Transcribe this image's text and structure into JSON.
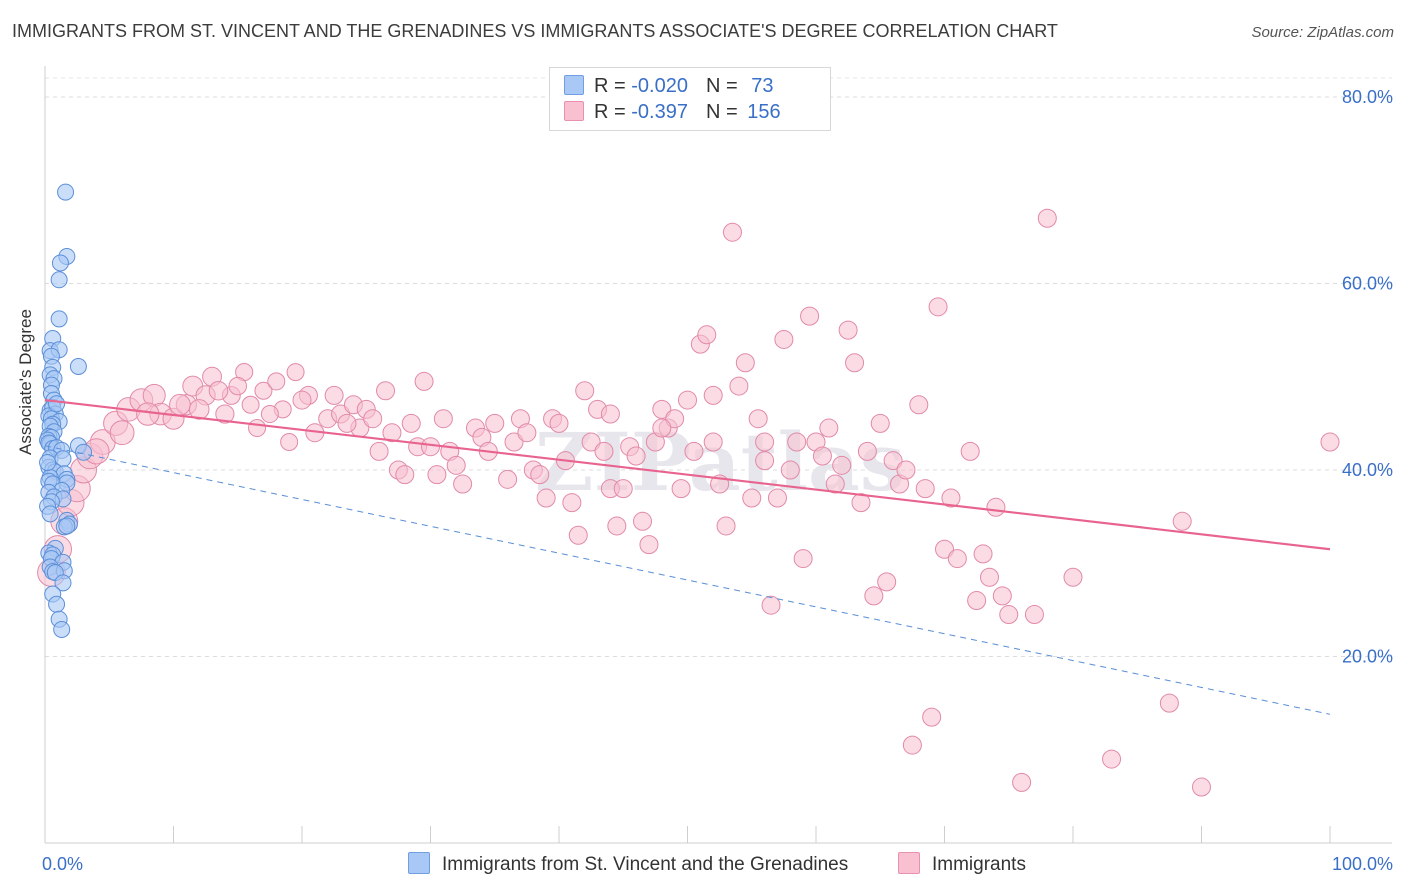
{
  "header": {
    "title": "IMMIGRANTS FROM ST. VINCENT AND THE GRENADINES VS IMMIGRANTS ASSOCIATE'S DEGREE CORRELATION CHART",
    "source": "Source: ZipAtlas.com"
  },
  "watermark": "ZIPatlas",
  "legend": {
    "rows": [
      {
        "r_label": "R = ",
        "r_value": "-0.020",
        "n_label": "N = ",
        "n_value": " 73",
        "color": "#a9c8f5",
        "border": "#6f9fe0"
      },
      {
        "r_label": "R = ",
        "r_value": " -0.397",
        "n_label": "N = ",
        "n_value": "156",
        "color": "#f8c0d0",
        "border": "#e890ad"
      }
    ]
  },
  "bottom_legend": [
    {
      "label": "Immigrants from St. Vincent and the Grenadines",
      "color": "#a9c8f5",
      "border": "#6f9fe0"
    },
    {
      "label": "Immigrants",
      "color": "#f8c0d0",
      "border": "#e890ad"
    }
  ],
  "chart_data": {
    "type": "scatter",
    "title": "IMMIGRANTS FROM ST. VINCENT AND THE GRENADINES VS IMMIGRANTS ASSOCIATE'S DEGREE CORRELATION CHART",
    "xlabel": "",
    "ylabel": "Associate's Degree",
    "xlim": [
      0,
      100
    ],
    "ylim": [
      0,
      80
    ],
    "x_tick_labels": [
      {
        "value": 0,
        "label": "0.0%"
      },
      {
        "value": 100,
        "label": "100.0%"
      }
    ],
    "y_tick_labels": [
      {
        "value": 20,
        "label": "20.0%"
      },
      {
        "value": 40,
        "label": "40.0%"
      },
      {
        "value": 60,
        "label": "60.0%"
      },
      {
        "value": 80,
        "label": "80.0%"
      }
    ],
    "grid": true,
    "legend_position": "top-center",
    "colors": {
      "blue_fill": "#a9c8f5",
      "blue_edge": "#5b8fd8",
      "pink_fill": "#f8c0d0",
      "pink_edge": "#e28aa8",
      "blue_trend": "#5b8fd8",
      "pink_trend": "#e8648f",
      "tick_label": "#3a6fc8"
    },
    "series": [
      {
        "name": "Immigrants from St. Vincent and the Grenadines",
        "R": -0.02,
        "N": 73,
        "trend": {
          "x": [
            0,
            100
          ],
          "y": [
            42.6,
            13.8
          ],
          "style": "dashed"
        },
        "points": [
          [
            1.6,
            69.8
          ],
          [
            1.7,
            62.9
          ],
          [
            1.2,
            62.2
          ],
          [
            1.1,
            60.4
          ],
          [
            1.1,
            56.2
          ],
          [
            0.6,
            54.1
          ],
          [
            0.4,
            52.8
          ],
          [
            1.1,
            52.9
          ],
          [
            0.5,
            52.2
          ],
          [
            2.6,
            51.1
          ],
          [
            0.6,
            51.0
          ],
          [
            0.4,
            50.2
          ],
          [
            0.7,
            49.8
          ],
          [
            0.5,
            49.1
          ],
          [
            0.5,
            48.2
          ],
          [
            0.7,
            47.5
          ],
          [
            0.4,
            46.4
          ],
          [
            0.6,
            46.7
          ],
          [
            0.8,
            46.0
          ],
          [
            0.3,
            45.8
          ],
          [
            0.5,
            45.5
          ],
          [
            1.1,
            45.2
          ],
          [
            0.6,
            44.9
          ],
          [
            0.4,
            44.7
          ],
          [
            0.7,
            44.1
          ],
          [
            0.3,
            43.6
          ],
          [
            0.5,
            43.5
          ],
          [
            0.2,
            43.2
          ],
          [
            0.4,
            42.8
          ],
          [
            0.3,
            42.9
          ],
          [
            0.6,
            42.3
          ],
          [
            0.9,
            42.4
          ],
          [
            2.6,
            42.6
          ],
          [
            3.0,
            41.9
          ],
          [
            1.3,
            42.1
          ],
          [
            0.4,
            41.3
          ],
          [
            1.4,
            41.2
          ],
          [
            0.3,
            40.3
          ],
          [
            0.6,
            40.0
          ],
          [
            0.8,
            39.8
          ],
          [
            1.5,
            39.6
          ],
          [
            1.7,
            39.0
          ],
          [
            0.4,
            39.2
          ],
          [
            0.3,
            38.8
          ],
          [
            0.6,
            38.5
          ],
          [
            1.7,
            38.6
          ],
          [
            1.3,
            37.8
          ],
          [
            0.3,
            37.6
          ],
          [
            0.7,
            37.1
          ],
          [
            1.4,
            36.9
          ],
          [
            0.5,
            36.6
          ],
          [
            0.2,
            36.1
          ],
          [
            0.4,
            35.3
          ],
          [
            1.7,
            34.6
          ],
          [
            1.9,
            34.2
          ],
          [
            1.5,
            33.9
          ],
          [
            1.7,
            34.0
          ],
          [
            0.8,
            31.6
          ],
          [
            0.3,
            31.1
          ],
          [
            0.6,
            30.9
          ],
          [
            0.5,
            30.5
          ],
          [
            1.4,
            30.1
          ],
          [
            0.4,
            29.6
          ],
          [
            0.6,
            29.1
          ],
          [
            1.5,
            29.2
          ],
          [
            0.8,
            29.0
          ],
          [
            1.4,
            27.9
          ],
          [
            0.6,
            26.7
          ],
          [
            0.9,
            25.6
          ],
          [
            1.1,
            24.0
          ],
          [
            1.3,
            22.9
          ],
          [
            0.2,
            40.8
          ],
          [
            0.9,
            47.1
          ]
        ]
      },
      {
        "name": "Immigrants",
        "R": -0.397,
        "N": 156,
        "trend": {
          "x": [
            0,
            100
          ],
          "y": [
            47.5,
            31.5
          ],
          "style": "solid"
        },
        "points": [
          [
            0.5,
            29.0
          ],
          [
            1.0,
            31.5
          ],
          [
            1.5,
            34.5
          ],
          [
            2.0,
            36.5
          ],
          [
            2.5,
            38.0
          ],
          [
            3.0,
            40.0
          ],
          [
            3.5,
            41.5
          ],
          [
            4.5,
            43.0
          ],
          [
            5.5,
            45.0
          ],
          [
            6.5,
            46.5
          ],
          [
            7.5,
            47.5
          ],
          [
            8.5,
            48.0
          ],
          [
            9.0,
            46.0
          ],
          [
            10.0,
            45.5
          ],
          [
            11.0,
            47.0
          ],
          [
            11.5,
            49.0
          ],
          [
            12.5,
            48.0
          ],
          [
            13.0,
            50.0
          ],
          [
            14.0,
            46.0
          ],
          [
            14.5,
            48.0
          ],
          [
            15.5,
            50.5
          ],
          [
            16.0,
            47.0
          ],
          [
            16.5,
            44.5
          ],
          [
            17.0,
            48.5
          ],
          [
            18.0,
            49.5
          ],
          [
            18.5,
            46.5
          ],
          [
            19.0,
            43.0
          ],
          [
            19.5,
            50.5
          ],
          [
            20.5,
            48.0
          ],
          [
            21.0,
            44.0
          ],
          [
            22.0,
            45.5
          ],
          [
            22.5,
            48.0
          ],
          [
            23.0,
            46.0
          ],
          [
            24.0,
            47.0
          ],
          [
            24.5,
            44.5
          ],
          [
            25.0,
            46.5
          ],
          [
            26.0,
            42.0
          ],
          [
            26.5,
            48.5
          ],
          [
            27.0,
            44.0
          ],
          [
            27.5,
            40.0
          ],
          [
            28.0,
            39.5
          ],
          [
            28.5,
            45.0
          ],
          [
            29.0,
            42.5
          ],
          [
            29.5,
            49.5
          ],
          [
            30.5,
            39.5
          ],
          [
            31.0,
            45.5
          ],
          [
            31.5,
            42.0
          ],
          [
            32.0,
            40.5
          ],
          [
            32.5,
            38.5
          ],
          [
            33.5,
            44.5
          ],
          [
            34.0,
            43.5
          ],
          [
            35.0,
            45.0
          ],
          [
            36.0,
            39.0
          ],
          [
            36.5,
            43.0
          ],
          [
            37.0,
            45.5
          ],
          [
            38.0,
            40.0
          ],
          [
            38.5,
            39.5
          ],
          [
            39.0,
            37.0
          ],
          [
            39.5,
            45.5
          ],
          [
            40.5,
            41.0
          ],
          [
            41.0,
            36.5
          ],
          [
            41.5,
            33.0
          ],
          [
            42.0,
            48.5
          ],
          [
            42.5,
            43.0
          ],
          [
            43.0,
            46.5
          ],
          [
            43.5,
            42.0
          ],
          [
            44.0,
            38.0
          ],
          [
            44.5,
            34.0
          ],
          [
            45.0,
            38.0
          ],
          [
            45.5,
            42.5
          ],
          [
            46.0,
            41.5
          ],
          [
            46.5,
            34.5
          ],
          [
            47.0,
            32.0
          ],
          [
            47.5,
            43.0
          ],
          [
            48.0,
            46.5
          ],
          [
            48.5,
            44.5
          ],
          [
            49.0,
            45.5
          ],
          [
            49.5,
            38.0
          ],
          [
            50.0,
            47.5
          ],
          [
            50.5,
            42.0
          ],
          [
            51.0,
            53.5
          ],
          [
            51.5,
            54.5
          ],
          [
            52.0,
            43.0
          ],
          [
            52.5,
            38.5
          ],
          [
            53.0,
            34.0
          ],
          [
            53.5,
            65.5
          ],
          [
            54.0,
            49.0
          ],
          [
            54.5,
            51.5
          ],
          [
            55.0,
            37.0
          ],
          [
            55.5,
            45.5
          ],
          [
            56.0,
            43.0
          ],
          [
            56.5,
            25.5
          ],
          [
            57.0,
            37.0
          ],
          [
            57.5,
            54.0
          ],
          [
            58.0,
            40.0
          ],
          [
            58.5,
            43.0
          ],
          [
            59.0,
            30.5
          ],
          [
            59.5,
            56.5
          ],
          [
            60.0,
            43.0
          ],
          [
            60.5,
            41.5
          ],
          [
            61.0,
            44.5
          ],
          [
            61.5,
            38.5
          ],
          [
            62.0,
            40.5
          ],
          [
            62.5,
            55.0
          ],
          [
            63.0,
            51.5
          ],
          [
            63.5,
            36.5
          ],
          [
            64.0,
            42.0
          ],
          [
            64.5,
            26.5
          ],
          [
            65.0,
            45.0
          ],
          [
            65.5,
            28.0
          ],
          [
            66.0,
            41.0
          ],
          [
            66.5,
            38.5
          ],
          [
            67.0,
            40.0
          ],
          [
            67.5,
            10.5
          ],
          [
            68.0,
            47.0
          ],
          [
            68.5,
            38.0
          ],
          [
            69.0,
            13.5
          ],
          [
            69.5,
            57.5
          ],
          [
            70.0,
            31.5
          ],
          [
            70.5,
            37.0
          ],
          [
            71.0,
            30.5
          ],
          [
            72.0,
            42.0
          ],
          [
            72.5,
            26.0
          ],
          [
            73.0,
            31.0
          ],
          [
            73.5,
            28.5
          ],
          [
            74.0,
            36.0
          ],
          [
            74.5,
            26.5
          ],
          [
            75.0,
            24.5
          ],
          [
            76.0,
            6.5
          ],
          [
            77.0,
            24.5
          ],
          [
            78.0,
            67.0
          ],
          [
            80.0,
            28.5
          ],
          [
            83.0,
            9.0
          ],
          [
            87.5,
            15.0
          ],
          [
            88.5,
            34.5
          ],
          [
            90.0,
            6.0
          ],
          [
            100.0,
            43.0
          ],
          [
            4.0,
            42.0
          ],
          [
            6.0,
            44.0
          ],
          [
            8.0,
            46.0
          ],
          [
            10.5,
            47.0
          ],
          [
            12.0,
            46.5
          ],
          [
            13.5,
            48.5
          ],
          [
            15.0,
            49.0
          ],
          [
            17.5,
            46.0
          ],
          [
            20.0,
            47.5
          ],
          [
            23.5,
            45.0
          ],
          [
            25.5,
            45.5
          ],
          [
            30.0,
            42.5
          ],
          [
            34.5,
            42.0
          ],
          [
            37.5,
            44.0
          ],
          [
            40.0,
            45.0
          ],
          [
            44.0,
            46.0
          ],
          [
            48.0,
            44.5
          ],
          [
            52.0,
            48.0
          ],
          [
            56.0,
            41.0
          ]
        ]
      }
    ]
  }
}
